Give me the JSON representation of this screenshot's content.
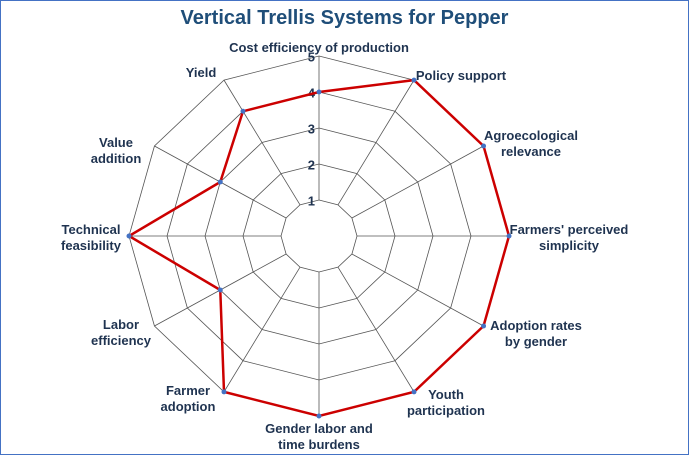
{
  "chart_data": {
    "type": "radar",
    "title": "Vertical Trellis Systems for Pepper",
    "categories": [
      "Cost efficiency of production",
      "Policy support",
      "Agroecological\nrelevance",
      "Farmers' perceived\nsimplicity",
      "Adoption rates\nby gender",
      "Youth\nparticipation",
      "Gender labor and\ntime burdens",
      "Farmer\nadoption",
      "Labor\nefficiency",
      "Technical\nfeasibility",
      "Value\naddition",
      "Yield"
    ],
    "series": [
      {
        "name": "Vertical Trellis Systems for Pepper",
        "color": "#cc0000",
        "values": [
          4,
          5,
          5,
          5,
          5,
          5,
          5,
          5,
          3,
          5,
          3,
          4
        ]
      }
    ],
    "rlim": [
      0,
      5
    ],
    "rticks": [
      1,
      2,
      3,
      4,
      5
    ],
    "grid": true
  }
}
